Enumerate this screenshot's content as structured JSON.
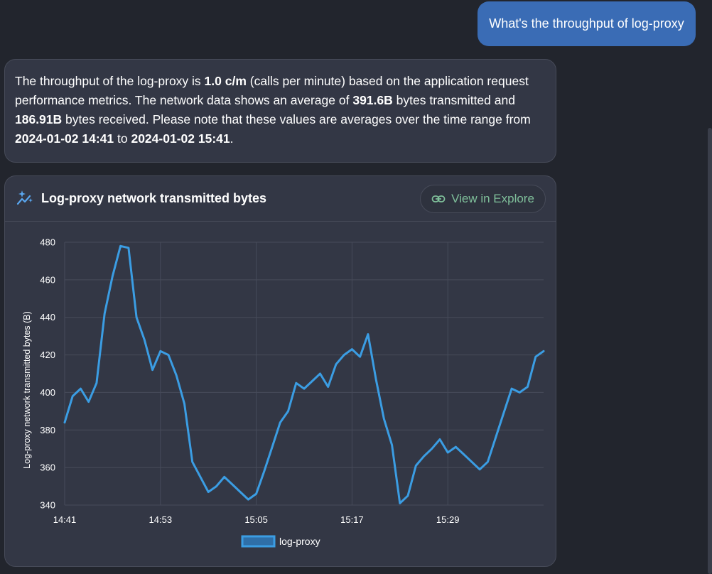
{
  "user_message": "What's the throughput of log-proxy",
  "assistant_message": {
    "p1": "The throughput of the log-proxy is ",
    "b1": "1.0 c/m",
    "p2": " (calls per minute) based on the application request performance metrics. The network data shows an average of ",
    "b2": "391.6B",
    "p3": " bytes transmitted and ",
    "b3": "186.91B",
    "p4": " bytes received. Please note that these values are averages over the time range from ",
    "b4": "2024-01-02 14:41",
    "p5": " to ",
    "b5": "2024-01-02 15:41",
    "p6": "."
  },
  "chart_card": {
    "title": "Log-proxy network transmitted bytes",
    "explore_label": "View in Explore",
    "icons": {
      "title": "sparkle-chart-icon",
      "explore": "link-icon"
    }
  },
  "colors": {
    "line": "#3b9de3",
    "explore_text": "#7fbf9a",
    "user_bubble": "#3a6cb5"
  },
  "chart_data": {
    "type": "line",
    "title": "Log-proxy network transmitted bytes",
    "ylabel": "Log-proxy network transmitted bytes (B)",
    "xlabel": "",
    "ylim": [
      340,
      480
    ],
    "yticks": [
      340,
      360,
      380,
      400,
      420,
      440,
      460,
      480
    ],
    "xticks": [
      "14:41",
      "14:53",
      "15:05",
      "15:17",
      "15:29"
    ],
    "x_start": "14:41",
    "x_end": "15:41",
    "grid": true,
    "legend": "bottom",
    "series": [
      {
        "name": "log-proxy",
        "values": [
          384,
          398,
          402,
          395,
          405,
          442,
          462,
          478,
          477,
          440,
          428,
          412,
          422,
          420,
          409,
          394,
          363,
          355,
          347,
          350,
          355,
          351,
          347,
          343,
          346,
          358,
          371,
          384,
          390,
          405,
          402,
          406,
          410,
          403,
          415,
          420,
          423,
          419,
          431,
          407,
          386,
          372,
          341,
          345,
          361,
          366,
          370,
          375,
          368,
          371,
          367,
          363,
          359,
          363,
          376,
          389,
          402,
          400,
          403,
          419,
          422
        ]
      }
    ]
  }
}
